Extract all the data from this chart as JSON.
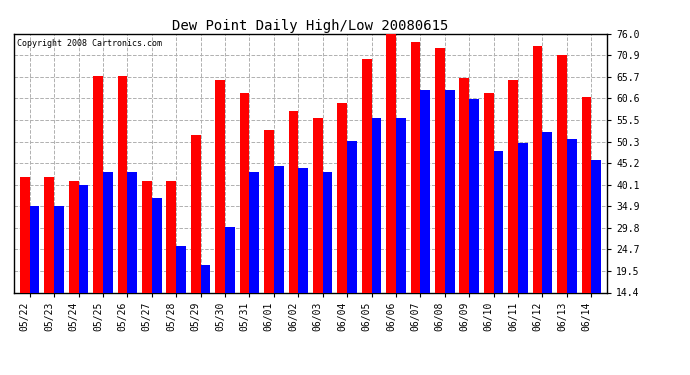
{
  "title": "Dew Point Daily High/Low 20080615",
  "copyright": "Copyright 2008 Cartronics.com",
  "dates": [
    "05/22",
    "05/23",
    "05/24",
    "05/25",
    "05/26",
    "05/27",
    "05/28",
    "05/29",
    "05/30",
    "05/31",
    "06/01",
    "06/02",
    "06/03",
    "06/04",
    "06/05",
    "06/06",
    "06/07",
    "06/08",
    "06/09",
    "06/10",
    "06/11",
    "06/12",
    "06/13",
    "06/14"
  ],
  "highs": [
    42.0,
    42.0,
    41.0,
    66.0,
    66.0,
    41.0,
    41.0,
    52.0,
    65.0,
    62.0,
    53.0,
    57.5,
    56.0,
    59.5,
    70.0,
    76.0,
    74.0,
    72.5,
    65.5,
    62.0,
    65.0,
    73.0,
    71.0,
    61.0
  ],
  "lows": [
    35.0,
    35.0,
    40.0,
    43.0,
    43.0,
    37.0,
    25.5,
    21.0,
    30.0,
    43.0,
    44.5,
    44.0,
    43.0,
    50.5,
    56.0,
    56.0,
    62.5,
    62.5,
    60.5,
    48.0,
    50.0,
    52.5,
    51.0,
    46.0
  ],
  "high_color": "#ff0000",
  "low_color": "#0000ff",
  "bg_color": "#ffffff",
  "grid_color": "#b0b0b0",
  "yticks": [
    14.4,
    19.5,
    24.7,
    29.8,
    34.9,
    40.1,
    45.2,
    50.3,
    55.5,
    60.6,
    65.7,
    70.9,
    76.0
  ],
  "ymin": 14.4,
  "ymax": 76.0,
  "bar_width": 0.4,
  "title_fontsize": 10,
  "tick_fontsize": 7,
  "copyright_fontsize": 6
}
